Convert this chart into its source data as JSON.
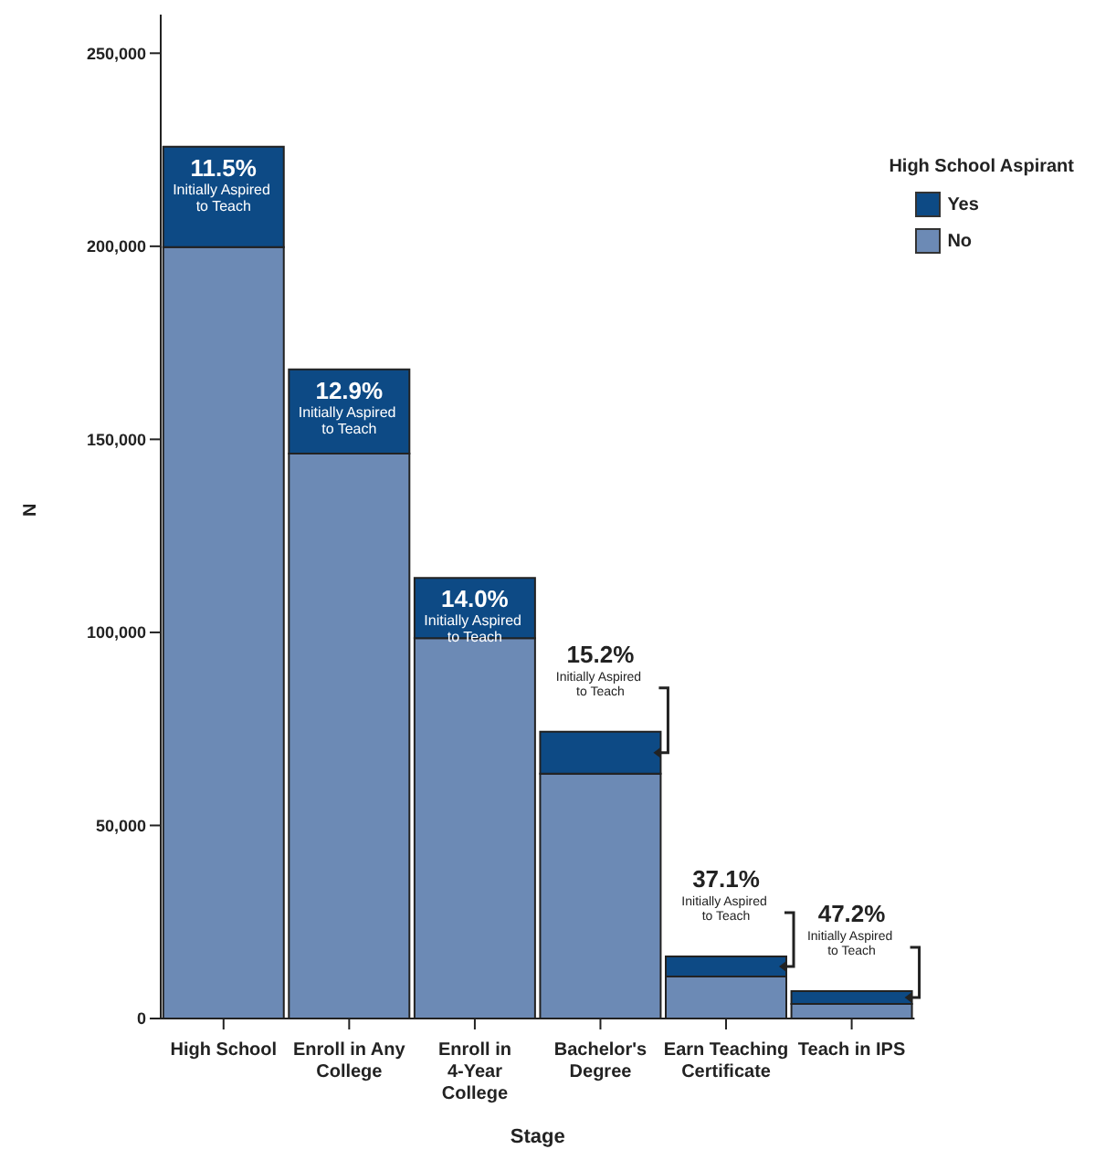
{
  "chart_data": {
    "type": "bar",
    "stacked": true,
    "xlabel": "Stage",
    "ylabel": "N",
    "legend_title": "High School Aspirant",
    "legend": "top right",
    "grid": false,
    "categories": [
      "High School",
      "Enroll in Any College",
      "Enroll in 4-Year College",
      "Bachelor's Degree",
      "Earn Teaching Certificate",
      "Teach in IPS"
    ],
    "series": [
      {
        "name": "No",
        "color": "#6c8ab5",
        "values": [
          199800,
          146300,
          98500,
          63400,
          10900,
          3800
        ]
      },
      {
        "name": "Yes",
        "color": "#0d4a85",
        "values": [
          26000,
          21800,
          15600,
          10900,
          5200,
          3300
        ]
      }
    ],
    "ylim": [
      0,
      260000
    ],
    "yticks": [
      {
        "value": 0,
        "label": "0"
      },
      {
        "value": 50000,
        "label": "50,000"
      },
      {
        "value": 100000,
        "label": "100,000"
      },
      {
        "value": 150000,
        "label": "150,000"
      },
      {
        "value": 200000,
        "label": "200,000"
      },
      {
        "value": 250000,
        "label": "250,000"
      }
    ],
    "annotations": [
      {
        "text": "11.5%",
        "x": "High School",
        "y": 225800
      },
      {
        "text": "Initially Aspired to Teach",
        "x": "High School",
        "y": 225800
      },
      {
        "text": "12.9%",
        "x": "Enroll in Any College",
        "y": 168100
      },
      {
        "text": "Initially Aspired to Teach",
        "x": "Enroll in Any College",
        "y": 168100
      },
      {
        "text": "14.0%",
        "x": "Enroll in 4-Year College",
        "y": 114100
      },
      {
        "text": "Initially Aspired to Teach",
        "x": "Enroll in 4-Year College",
        "y": 114100
      },
      {
        "text": "15.2%",
        "x": "Bachelor's Degree",
        "y": 74300
      },
      {
        "text": "Initially Aspired to Teach",
        "x": "Bachelor's Degree",
        "y": 74300
      },
      {
        "text": "37.1%",
        "x": "Earn Teaching Certificate",
        "y": 16100
      },
      {
        "text": "Initially Aspired to Teach",
        "x": "Earn Teaching Certificate",
        "y": 16100
      },
      {
        "text": "47.2%",
        "x": "Teach in IPS",
        "y": 7100
      },
      {
        "text": "Initially Aspired to Teach",
        "x": "Teach in IPS",
        "y": 7100
      }
    ]
  }
}
